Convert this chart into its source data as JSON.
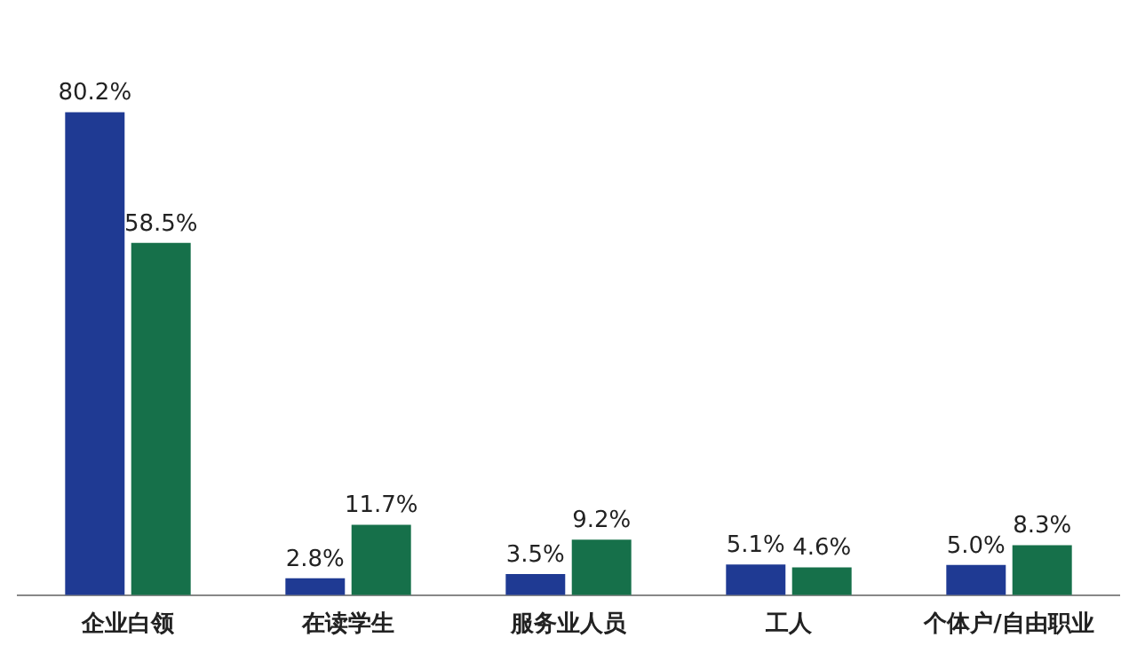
{
  "chart_data": {
    "type": "bar",
    "categories": [
      "企业白领",
      "在读学生",
      "服务业人员",
      "工人",
      "个体户/自由职业"
    ],
    "series": [
      {
        "color": "#1f3a93",
        "values": [
          80.2,
          2.8,
          3.5,
          5.1,
          5.0
        ],
        "value_labels": [
          "80.2%",
          "2.8%",
          "3.5%",
          "5.1%",
          "5.0%"
        ]
      },
      {
        "color": "#16704a",
        "values": [
          58.5,
          11.7,
          9.2,
          4.6,
          8.3
        ],
        "value_labels": [
          "58.5%",
          "11.7%",
          "9.2%",
          "4.6%",
          "8.3%"
        ]
      }
    ],
    "grid": false,
    "legend": false,
    "tick_labels": "x"
  }
}
